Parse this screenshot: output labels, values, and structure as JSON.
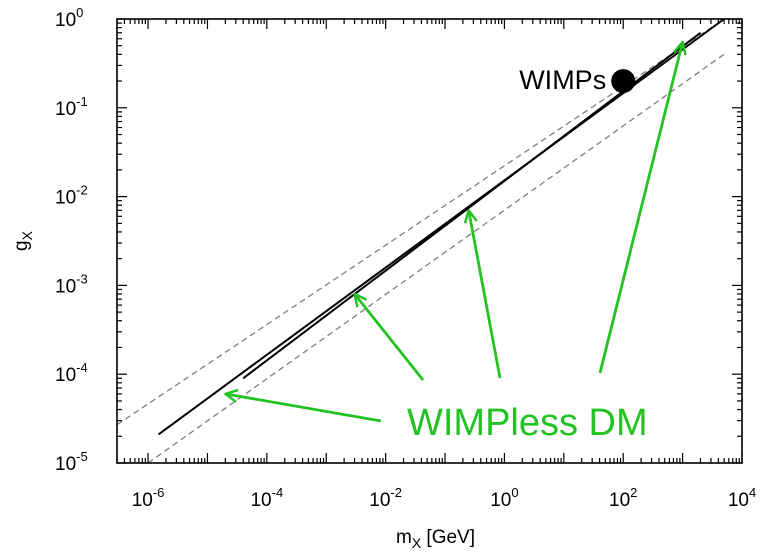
{
  "chart_data": {
    "type": "line",
    "x_scale": "log",
    "y_scale": "log",
    "xlim": [
      3e-07,
      10000.0
    ],
    "ylim": [
      1e-05,
      1.0
    ],
    "x_ticks": [
      1e-06,
      0.0001,
      0.01,
      1,
      100.0,
      10000.0
    ],
    "x_tick_labels": [
      {
        "base": "10",
        "exp": "-6"
      },
      {
        "base": "10",
        "exp": "-4"
      },
      {
        "base": "10",
        "exp": "-2"
      },
      {
        "base": "10",
        "exp": "0"
      },
      {
        "base": "10",
        "exp": "2"
      },
      {
        "base": "10",
        "exp": "4"
      }
    ],
    "y_ticks": [
      1e-05,
      0.0001,
      0.001,
      0.01,
      0.1,
      1
    ],
    "y_tick_labels": [
      {
        "base": "10",
        "exp": "-5"
      },
      {
        "base": "10",
        "exp": "-4"
      },
      {
        "base": "10",
        "exp": "-3"
      },
      {
        "base": "10",
        "exp": "-2"
      },
      {
        "base": "10",
        "exp": "-1"
      },
      {
        "base": "10",
        "exp": "0"
      }
    ],
    "xlabel": {
      "main": "m",
      "sub": "X",
      "suffix": " [GeV]"
    },
    "ylabel": {
      "main": "g",
      "sub": "X"
    },
    "grid": false,
    "series": [
      {
        "style": "dashed",
        "color": "#7f7f7f",
        "x": [
          3e-07,
          5000
        ],
        "y": [
          2.7e-05,
          1.0
        ]
      },
      {
        "style": "solid",
        "color": "#000000",
        "x": [
          1.5e-06,
          5000
        ],
        "y": [
          2.1e-05,
          1.0
        ]
      },
      {
        "style": "solid",
        "color": "#000000",
        "x": [
          4e-05,
          2000
        ],
        "y": [
          9e-05,
          0.7
        ]
      },
      {
        "style": "dashed",
        "color": "#7f7f7f",
        "x": [
          1e-06,
          5000
        ],
        "y": [
          1e-05,
          0.4
        ]
      }
    ],
    "points": [
      {
        "label": "WIMPs",
        "x": 100,
        "y": 0.2,
        "color": "#000000"
      }
    ],
    "annotations": [
      {
        "text": "WIMPless DM",
        "color": "#22c322",
        "arrow_targets": [
          {
            "x": 2e-05,
            "y": 6e-05
          },
          {
            "x": 0.003,
            "y": 0.0008
          },
          {
            "x": 0.25,
            "y": 0.007
          },
          {
            "x": 1000,
            "y": 0.55
          }
        ]
      }
    ]
  }
}
